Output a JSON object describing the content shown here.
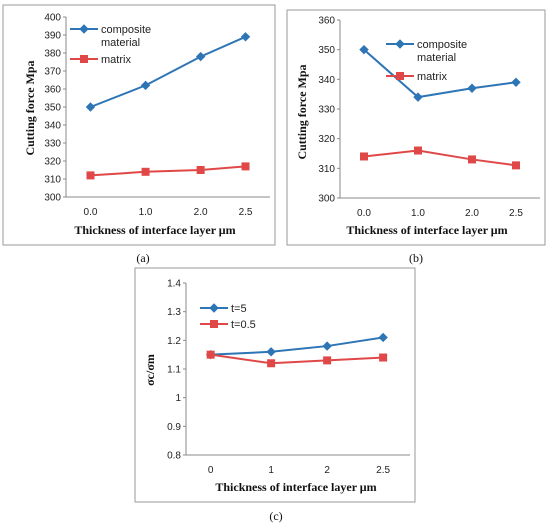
{
  "chart_data": [
    {
      "type": "line",
      "caption": "(a)",
      "categories": [
        "0.0",
        "1.0",
        "2.0",
        "2.5"
      ],
      "series": [
        {
          "name": "composite\nmaterial",
          "values": [
            350,
            362,
            378,
            389
          ],
          "color": "#2E75B6",
          "marker": "diamond"
        },
        {
          "name": "matrix",
          "values": [
            312,
            314,
            315,
            317
          ],
          "color": "#E04848",
          "marker": "square"
        }
      ],
      "xlabel": "Thickness of interface layer μm",
      "ylabel": "Cutting force Mpa",
      "ylim": [
        300,
        400
      ],
      "yticks": [
        "300",
        "310",
        "320",
        "330",
        "340",
        "350",
        "360",
        "370",
        "380",
        "390",
        "400"
      ],
      "grid": false,
      "legend": "top-left"
    },
    {
      "type": "line",
      "caption": "(b)",
      "categories": [
        "0.0",
        "1.0",
        "2.0",
        "2.5"
      ],
      "series": [
        {
          "name": "composite\nmaterial",
          "values": [
            350,
            334,
            337,
            339
          ],
          "color": "#2E75B6",
          "marker": "diamond"
        },
        {
          "name": "matrix",
          "values": [
            314,
            316,
            313,
            311
          ],
          "color": "#E04848",
          "marker": "square"
        }
      ],
      "xlabel": "Thickness of interface layer μm",
      "ylabel": "Cutting force Mpa",
      "ylim": [
        300,
        360
      ],
      "yticks": [
        "300",
        "310",
        "320",
        "330",
        "340",
        "350",
        "360"
      ],
      "grid": false,
      "legend": "top-right"
    },
    {
      "type": "line",
      "caption": "(c)",
      "categories": [
        "0",
        "1",
        "2",
        "2.5"
      ],
      "series": [
        {
          "name": "t=5",
          "values": [
            1.15,
            1.16,
            1.18,
            1.21
          ],
          "color": "#2E75B6",
          "marker": "diamond"
        },
        {
          "name": "t=0.5",
          "values": [
            1.15,
            1.12,
            1.13,
            1.14
          ],
          "color": "#E04848",
          "marker": "square"
        }
      ],
      "xlabel": "Thickness of interface layer μm",
      "ylabel": "σc/σm",
      "ylim": [
        0.8,
        1.4
      ],
      "yticks": [
        "0.8",
        "0.9",
        "1",
        "1.1",
        "1.2",
        "1.3",
        "1.4"
      ],
      "grid": false,
      "legend": "top-left"
    }
  ]
}
